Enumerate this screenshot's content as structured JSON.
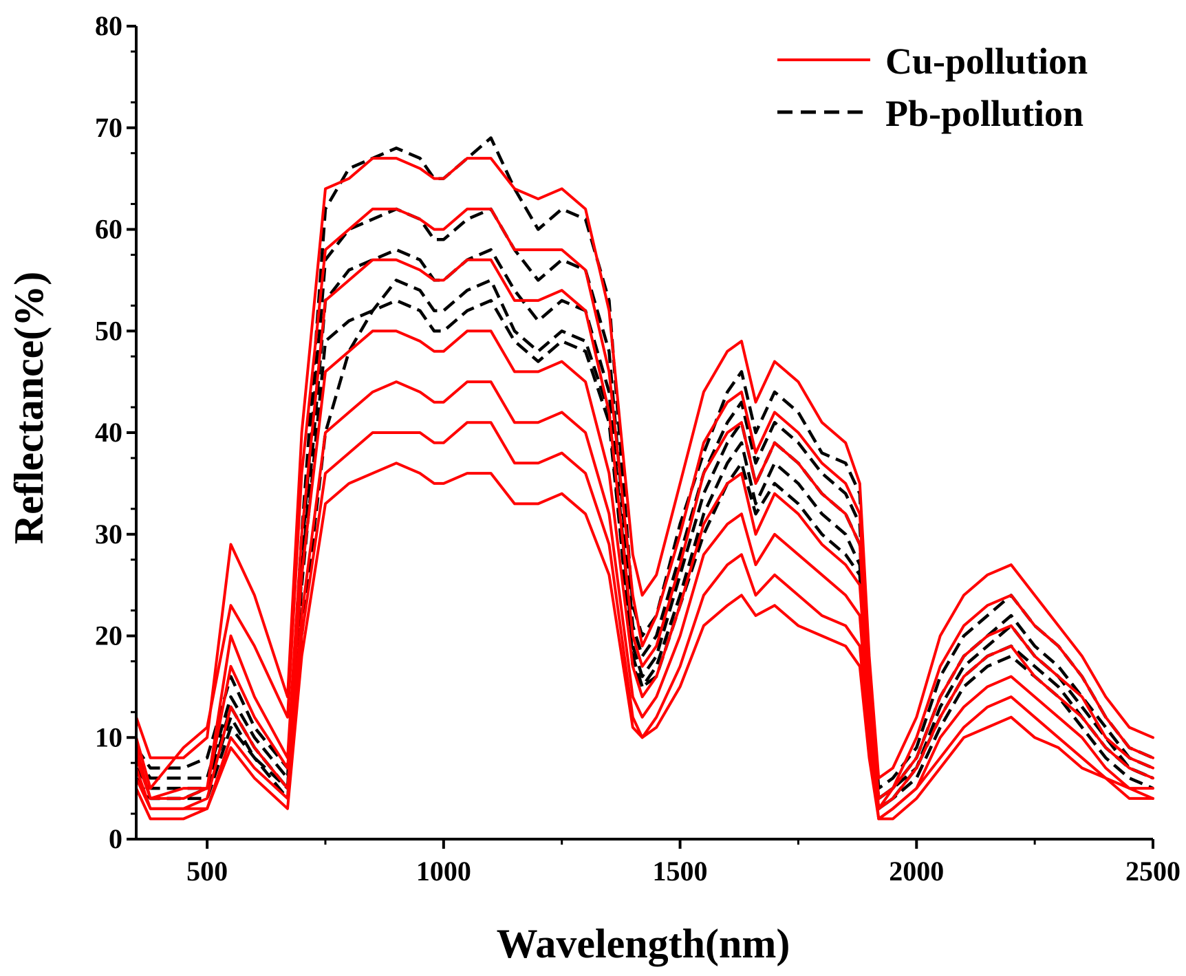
{
  "chart_data": {
    "type": "line",
    "title": "",
    "xlabel": "Wavelength(nm)",
    "ylabel": "Reflectance(%)",
    "xlim": [
      350,
      2500
    ],
    "ylim": [
      0,
      80
    ],
    "xticks": [
      500,
      1000,
      1500,
      2000,
      2500
    ],
    "yticks": [
      0,
      10,
      20,
      30,
      40,
      50,
      60,
      70,
      80
    ],
    "legend_position": "top-right",
    "x": [
      350,
      380,
      450,
      500,
      550,
      600,
      670,
      700,
      750,
      800,
      850,
      900,
      950,
      980,
      1000,
      1050,
      1100,
      1150,
      1200,
      1250,
      1300,
      1350,
      1400,
      1420,
      1450,
      1500,
      1550,
      1600,
      1630,
      1660,
      1700,
      1750,
      1800,
      1850,
      1880,
      1900,
      1920,
      1950,
      2000,
      2050,
      2100,
      2150,
      2200,
      2250,
      2300,
      2350,
      2400,
      2450,
      2500
    ],
    "series": [
      {
        "name": "Cu-pollution",
        "color": "#ff0000",
        "style": "solid",
        "curves": [
          [
            12,
            8,
            8,
            10,
            29,
            24,
            14,
            40,
            64,
            65,
            67,
            67,
            66,
            65,
            65,
            67,
            67,
            64,
            63,
            64,
            62,
            52,
            28,
            24,
            26,
            35,
            44,
            48,
            49,
            43,
            47,
            45,
            41,
            39,
            35,
            18,
            6,
            7,
            12,
            20,
            24,
            26,
            27,
            24,
            21,
            18,
            14,
            11,
            10
          ],
          [
            10,
            5,
            9,
            11,
            23,
            19,
            12,
            36,
            58,
            60,
            62,
            62,
            61,
            60,
            60,
            62,
            62,
            58,
            58,
            58,
            56,
            46,
            24,
            19,
            22,
            30,
            39,
            43,
            44,
            38,
            42,
            40,
            37,
            35,
            32,
            16,
            4,
            5,
            10,
            17,
            21,
            23,
            24,
            21,
            19,
            16,
            12,
            9,
            8
          ],
          [
            9,
            4,
            5,
            5,
            20,
            14,
            8,
            30,
            53,
            55,
            57,
            57,
            56,
            55,
            55,
            57,
            57,
            53,
            53,
            54,
            52,
            42,
            20,
            17,
            19,
            27,
            36,
            40,
            41,
            35,
            39,
            37,
            34,
            32,
            29,
            14,
            3,
            5,
            8,
            14,
            18,
            20,
            21,
            18,
            16,
            14,
            10,
            8,
            7
          ],
          [
            8,
            4,
            4,
            5,
            17,
            12,
            7,
            26,
            46,
            48,
            50,
            50,
            49,
            48,
            48,
            50,
            50,
            46,
            46,
            47,
            45,
            36,
            17,
            14,
            16,
            23,
            31,
            35,
            36,
            30,
            34,
            32,
            29,
            27,
            25,
            12,
            3,
            4,
            7,
            12,
            16,
            18,
            19,
            16,
            14,
            12,
            9,
            7,
            6
          ],
          [
            7,
            3,
            3,
            4,
            13,
            9,
            5,
            22,
            40,
            42,
            44,
            45,
            44,
            43,
            43,
            45,
            45,
            41,
            41,
            42,
            40,
            32,
            14,
            12,
            14,
            20,
            28,
            31,
            32,
            27,
            30,
            28,
            26,
            24,
            22,
            10,
            2,
            3,
            5,
            10,
            13,
            15,
            16,
            14,
            12,
            10,
            7,
            5,
            5
          ],
          [
            6,
            3,
            3,
            3,
            10,
            7,
            4,
            20,
            36,
            38,
            40,
            40,
            40,
            39,
            39,
            41,
            41,
            37,
            37,
            38,
            36,
            29,
            12,
            10,
            12,
            17,
            24,
            27,
            28,
            24,
            26,
            24,
            22,
            21,
            19,
            9,
            2,
            3,
            5,
            8,
            11,
            13,
            14,
            12,
            10,
            8,
            6,
            5,
            4
          ],
          [
            5,
            2,
            2,
            3,
            9,
            6,
            3,
            18,
            33,
            35,
            36,
            37,
            36,
            35,
            35,
            36,
            36,
            33,
            33,
            34,
            32,
            26,
            11,
            10,
            11,
            15,
            21,
            23,
            24,
            22,
            23,
            21,
            20,
            19,
            17,
            8,
            2,
            2,
            4,
            7,
            10,
            11,
            12,
            10,
            9,
            7,
            6,
            4,
            4
          ]
        ]
      },
      {
        "name": "Pb-pollution",
        "color": "#000000",
        "style": "dashed",
        "curves": [
          [
            9,
            7,
            7,
            8,
            16,
            11,
            7,
            30,
            62,
            66,
            67,
            68,
            67,
            65,
            65,
            67,
            69,
            64,
            60,
            62,
            61,
            53,
            23,
            20,
            22,
            31,
            38,
            44,
            46,
            40,
            44,
            42,
            38,
            37,
            34,
            16,
            5,
            6,
            9,
            16,
            20,
            22,
            24,
            21,
            19,
            16,
            12,
            9,
            8
          ],
          [
            8,
            6,
            6,
            6,
            14,
            10,
            6,
            28,
            57,
            60,
            61,
            62,
            61,
            59,
            59,
            61,
            62,
            58,
            55,
            57,
            56,
            48,
            21,
            18,
            20,
            28,
            36,
            41,
            43,
            37,
            41,
            39,
            36,
            34,
            31,
            14,
            4,
            5,
            8,
            14,
            18,
            20,
            22,
            19,
            17,
            14,
            11,
            8,
            7
          ],
          [
            7,
            5,
            5,
            5,
            13,
            9,
            5,
            26,
            53,
            56,
            57,
            58,
            57,
            55,
            55,
            57,
            58,
            54,
            51,
            53,
            52,
            44,
            19,
            16,
            18,
            26,
            34,
            39,
            41,
            35,
            39,
            37,
            34,
            32,
            29,
            13,
            4,
            5,
            7,
            13,
            17,
            19,
            21,
            18,
            16,
            13,
            10,
            7,
            6
          ],
          [
            6,
            4,
            4,
            5,
            12,
            8,
            5,
            25,
            49,
            51,
            52,
            53,
            52,
            50,
            50,
            52,
            53,
            49,
            47,
            49,
            48,
            41,
            18,
            15,
            17,
            24,
            32,
            37,
            39,
            33,
            37,
            35,
            32,
            30,
            27,
            12,
            3,
            4,
            7,
            12,
            16,
            18,
            19,
            17,
            15,
            12,
            9,
            7,
            6
          ],
          [
            6,
            4,
            4,
            4,
            11,
            8,
            4,
            20,
            40,
            48,
            52,
            55,
            54,
            52,
            52,
            54,
            55,
            50,
            48,
            50,
            49,
            42,
            17,
            15,
            16,
            23,
            30,
            35,
            37,
            32,
            35,
            33,
            30,
            28,
            26,
            11,
            3,
            4,
            6,
            11,
            15,
            17,
            18,
            16,
            14,
            11,
            8,
            6,
            5
          ]
        ]
      }
    ]
  }
}
